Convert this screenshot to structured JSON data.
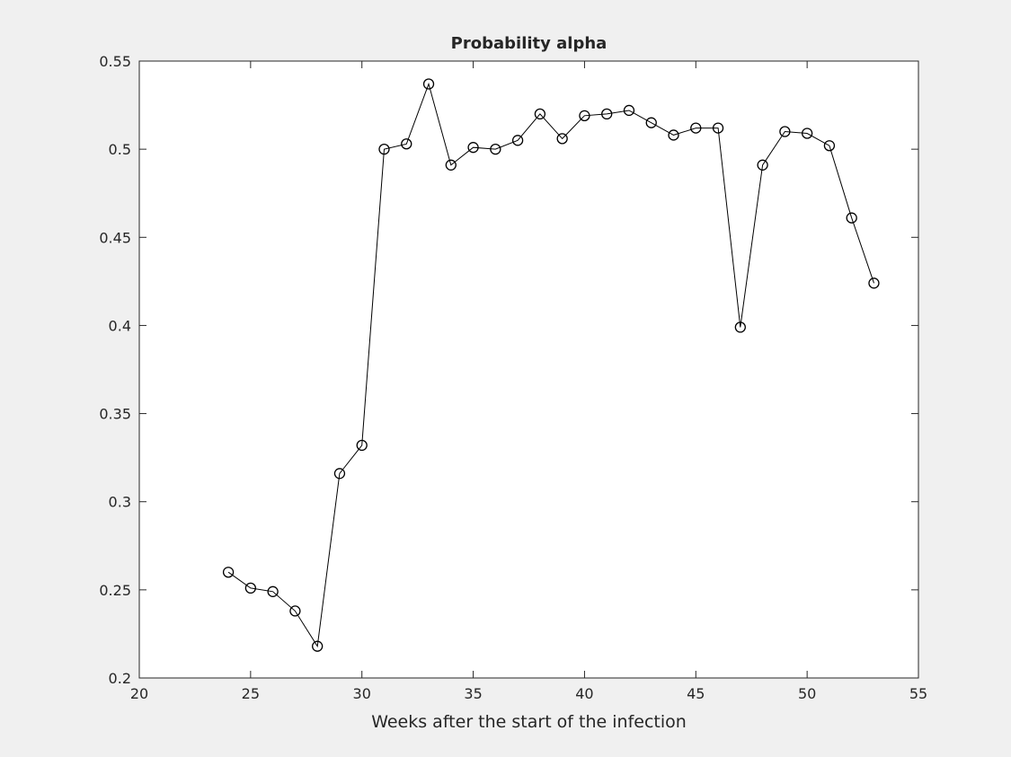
{
  "chart_data": {
    "type": "line",
    "title": "Probability alpha",
    "xlabel": "Weeks after the start of the infection",
    "ylabel": "",
    "xlim": [
      20,
      55
    ],
    "ylim": [
      0.2,
      0.55
    ],
    "xticks": [
      20,
      25,
      30,
      35,
      40,
      45,
      50,
      55
    ],
    "yticks": [
      0.2,
      0.25,
      0.3,
      0.35,
      0.4,
      0.45,
      0.5,
      0.55
    ],
    "xtick_labels": [
      "20",
      "25",
      "30",
      "35",
      "40",
      "45",
      "50",
      "55"
    ],
    "ytick_labels": [
      "0.2",
      "0.25",
      "0.3",
      "0.35",
      "0.4",
      "0.45",
      "0.5",
      "0.55"
    ],
    "grid": false,
    "marker": "circle",
    "line_color": "#000000",
    "marker_edge_color": "#000000",
    "series": [
      {
        "x": [
          24,
          25,
          26,
          27,
          28,
          29,
          30,
          31,
          32,
          33,
          34,
          35,
          36,
          37,
          38,
          39,
          40,
          41,
          42,
          43,
          44,
          45,
          46,
          47,
          48,
          49,
          50,
          51,
          52,
          53
        ],
        "values": [
          0.26,
          0.251,
          0.249,
          0.238,
          0.218,
          0.316,
          0.332,
          0.5,
          0.503,
          0.537,
          0.491,
          0.501,
          0.5,
          0.505,
          0.52,
          0.506,
          0.519,
          0.52,
          0.522,
          0.515,
          0.508,
          0.512,
          0.512,
          0.399,
          0.491,
          0.51,
          0.509,
          0.502,
          0.461,
          0.424
        ]
      }
    ]
  }
}
